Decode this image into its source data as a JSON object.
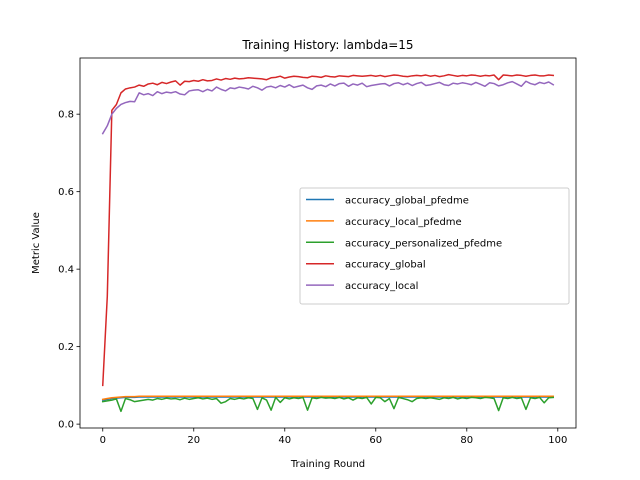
{
  "chart_data": {
    "type": "line",
    "title": "Training History: lambda=15",
    "xlabel": "Training Round",
    "ylabel": "Metric Value",
    "xlim": [
      -5,
      104
    ],
    "ylim": [
      -0.01,
      0.945
    ],
    "xticks": [
      0,
      20,
      40,
      60,
      80,
      100
    ],
    "yticks": [
      0.0,
      0.2,
      0.4,
      0.6,
      0.8
    ],
    "ytick_labels": [
      "0.0",
      "0.2",
      "0.4",
      "0.6",
      "0.8"
    ],
    "grid": false,
    "legend_position": "center-right",
    "x": [
      0,
      1,
      2,
      3,
      4,
      5,
      6,
      7,
      8,
      9,
      10,
      11,
      12,
      13,
      14,
      15,
      16,
      17,
      18,
      19,
      20,
      21,
      22,
      23,
      24,
      25,
      26,
      27,
      28,
      29,
      30,
      31,
      32,
      33,
      34,
      35,
      36,
      37,
      38,
      39,
      40,
      41,
      42,
      43,
      44,
      45,
      46,
      47,
      48,
      49,
      50,
      51,
      52,
      53,
      54,
      55,
      56,
      57,
      58,
      59,
      60,
      61,
      62,
      63,
      64,
      65,
      66,
      67,
      68,
      69,
      70,
      71,
      72,
      73,
      74,
      75,
      76,
      77,
      78,
      79,
      80,
      81,
      82,
      83,
      84,
      85,
      86,
      87,
      88,
      89,
      90,
      91,
      92,
      93,
      94,
      95,
      96,
      97,
      98,
      99
    ],
    "series": [
      {
        "name": "accuracy_global_pfedme",
        "color": "#1f77b4",
        "values": [
          0.062,
          0.064,
          0.066,
          0.067,
          0.068,
          0.069,
          0.069,
          0.069,
          0.07,
          0.07,
          0.07,
          0.07,
          0.07,
          0.07,
          0.07,
          0.07,
          0.07,
          0.07,
          0.07,
          0.07,
          0.07,
          0.07,
          0.07,
          0.07,
          0.07,
          0.07,
          0.07,
          0.07,
          0.07,
          0.07,
          0.07,
          0.07,
          0.07,
          0.07,
          0.07,
          0.07,
          0.07,
          0.07,
          0.07,
          0.07,
          0.07,
          0.07,
          0.07,
          0.07,
          0.07,
          0.07,
          0.07,
          0.07,
          0.07,
          0.07,
          0.07,
          0.07,
          0.07,
          0.07,
          0.07,
          0.07,
          0.07,
          0.07,
          0.07,
          0.07,
          0.07,
          0.07,
          0.07,
          0.07,
          0.07,
          0.07,
          0.07,
          0.07,
          0.07,
          0.07,
          0.07,
          0.07,
          0.07,
          0.07,
          0.07,
          0.07,
          0.07,
          0.07,
          0.07,
          0.07,
          0.07,
          0.07,
          0.07,
          0.07,
          0.07,
          0.07,
          0.07,
          0.07,
          0.07,
          0.07,
          0.07,
          0.07,
          0.07,
          0.07,
          0.07,
          0.07,
          0.07,
          0.07,
          0.07,
          0.07
        ]
      },
      {
        "name": "accuracy_local_pfedme",
        "color": "#ff7f0e",
        "values": [
          0.064,
          0.066,
          0.068,
          0.069,
          0.07,
          0.071,
          0.071,
          0.071,
          0.072,
          0.072,
          0.072,
          0.072,
          0.072,
          0.072,
          0.072,
          0.072,
          0.072,
          0.072,
          0.072,
          0.072,
          0.072,
          0.072,
          0.072,
          0.072,
          0.072,
          0.072,
          0.072,
          0.072,
          0.072,
          0.072,
          0.072,
          0.072,
          0.072,
          0.072,
          0.072,
          0.072,
          0.072,
          0.072,
          0.072,
          0.072,
          0.072,
          0.072,
          0.072,
          0.072,
          0.072,
          0.072,
          0.072,
          0.072,
          0.072,
          0.072,
          0.072,
          0.072,
          0.072,
          0.072,
          0.072,
          0.072,
          0.072,
          0.072,
          0.072,
          0.072,
          0.072,
          0.072,
          0.072,
          0.072,
          0.072,
          0.072,
          0.072,
          0.072,
          0.072,
          0.072,
          0.072,
          0.072,
          0.072,
          0.072,
          0.072,
          0.072,
          0.072,
          0.072,
          0.072,
          0.072,
          0.072,
          0.072,
          0.072,
          0.072,
          0.072,
          0.072,
          0.072,
          0.072,
          0.072,
          0.072,
          0.072,
          0.072,
          0.072,
          0.072,
          0.072,
          0.072,
          0.072,
          0.072,
          0.072,
          0.072
        ]
      },
      {
        "name": "accuracy_personalized_pfedme",
        "color": "#2ca02c",
        "values": [
          0.058,
          0.06,
          0.062,
          0.065,
          0.033,
          0.066,
          0.063,
          0.058,
          0.06,
          0.062,
          0.064,
          0.062,
          0.066,
          0.064,
          0.067,
          0.065,
          0.066,
          0.063,
          0.067,
          0.064,
          0.066,
          0.068,
          0.065,
          0.067,
          0.064,
          0.066,
          0.054,
          0.058,
          0.066,
          0.064,
          0.067,
          0.065,
          0.068,
          0.066,
          0.038,
          0.068,
          0.062,
          0.036,
          0.069,
          0.056,
          0.068,
          0.065,
          0.068,
          0.066,
          0.069,
          0.036,
          0.068,
          0.066,
          0.069,
          0.067,
          0.068,
          0.066,
          0.069,
          0.065,
          0.068,
          0.062,
          0.068,
          0.066,
          0.069,
          0.052,
          0.069,
          0.068,
          0.058,
          0.066,
          0.04,
          0.069,
          0.066,
          0.063,
          0.058,
          0.066,
          0.068,
          0.066,
          0.068,
          0.066,
          0.064,
          0.068,
          0.066,
          0.069,
          0.065,
          0.068,
          0.066,
          0.069,
          0.068,
          0.066,
          0.069,
          0.068,
          0.066,
          0.035,
          0.068,
          0.066,
          0.069,
          0.066,
          0.068,
          0.038,
          0.068,
          0.066,
          0.069,
          0.055,
          0.068,
          0.069
        ]
      },
      {
        "name": "accuracy_global",
        "color": "#d62728",
        "values": [
          0.1,
          0.33,
          0.81,
          0.825,
          0.855,
          0.865,
          0.868,
          0.87,
          0.875,
          0.872,
          0.878,
          0.88,
          0.876,
          0.882,
          0.879,
          0.883,
          0.886,
          0.875,
          0.885,
          0.884,
          0.887,
          0.885,
          0.889,
          0.886,
          0.887,
          0.891,
          0.888,
          0.892,
          0.89,
          0.893,
          0.891,
          0.892,
          0.894,
          0.893,
          0.892,
          0.891,
          0.889,
          0.894,
          0.895,
          0.898,
          0.893,
          0.896,
          0.898,
          0.897,
          0.895,
          0.894,
          0.898,
          0.897,
          0.895,
          0.899,
          0.897,
          0.896,
          0.899,
          0.898,
          0.897,
          0.9,
          0.899,
          0.898,
          0.899,
          0.9,
          0.898,
          0.9,
          0.897,
          0.899,
          0.901,
          0.9,
          0.898,
          0.897,
          0.899,
          0.9,
          0.899,
          0.901,
          0.898,
          0.9,
          0.897,
          0.899,
          0.902,
          0.9,
          0.898,
          0.9,
          0.899,
          0.901,
          0.9,
          0.898,
          0.9,
          0.899,
          0.901,
          0.889,
          0.901,
          0.9,
          0.899,
          0.901,
          0.9,
          0.898,
          0.9,
          0.901,
          0.899,
          0.899,
          0.901,
          0.9
        ]
      },
      {
        "name": "accuracy_local",
        "color": "#9467bd",
        "values": [
          0.75,
          0.77,
          0.8,
          0.815,
          0.825,
          0.83,
          0.833,
          0.832,
          0.855,
          0.85,
          0.853,
          0.848,
          0.858,
          0.853,
          0.857,
          0.855,
          0.858,
          0.852,
          0.85,
          0.86,
          0.862,
          0.863,
          0.858,
          0.864,
          0.86,
          0.87,
          0.864,
          0.86,
          0.868,
          0.866,
          0.87,
          0.868,
          0.865,
          0.872,
          0.868,
          0.862,
          0.87,
          0.872,
          0.868,
          0.874,
          0.87,
          0.876,
          0.869,
          0.872,
          0.875,
          0.868,
          0.864,
          0.873,
          0.875,
          0.871,
          0.878,
          0.873,
          0.879,
          0.88,
          0.872,
          0.878,
          0.875,
          0.88,
          0.871,
          0.874,
          0.876,
          0.878,
          0.879,
          0.873,
          0.879,
          0.881,
          0.876,
          0.88,
          0.874,
          0.879,
          0.882,
          0.874,
          0.876,
          0.879,
          0.882,
          0.876,
          0.874,
          0.88,
          0.878,
          0.881,
          0.879,
          0.876,
          0.882,
          0.877,
          0.872,
          0.881,
          0.879,
          0.873,
          0.876,
          0.881,
          0.884,
          0.878,
          0.872,
          0.885,
          0.879,
          0.876,
          0.882,
          0.879,
          0.883,
          0.876
        ]
      }
    ]
  }
}
